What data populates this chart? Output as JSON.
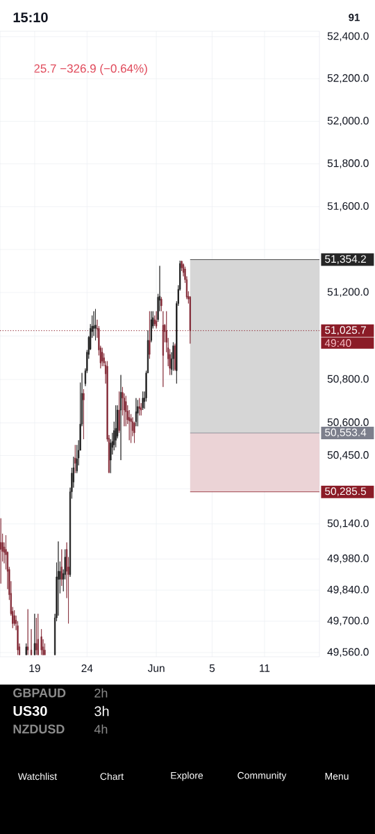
{
  "chart_data": {
    "type": "candlestick",
    "subtitle": "25.7 −326.9 (−0.64%)",
    "categories": [
      null,
      null,
      null,
      null,
      null,
      null,
      null,
      null,
      null,
      null,
      null,
      null,
      null,
      null,
      null,
      null,
      null,
      null,
      null,
      null,
      "19",
      null,
      null,
      null,
      null,
      null,
      null,
      null,
      null,
      null,
      null,
      null,
      null,
      null,
      null,
      null,
      null,
      null,
      null,
      null,
      null,
      null,
      null,
      null,
      null,
      null,
      null,
      null,
      null,
      null,
      null,
      "24",
      null,
      null,
      null,
      null,
      null,
      null,
      null,
      null,
      null,
      null,
      null,
      null,
      null,
      null,
      null,
      null,
      null,
      null,
      null,
      null,
      null,
      null,
      null,
      null,
      null,
      null,
      null,
      null,
      null,
      null,
      null,
      null,
      null,
      null,
      null,
      null,
      null,
      null,
      null,
      null,
      "Jun",
      null,
      null,
      null,
      null,
      null,
      null,
      null,
      null,
      null,
      null,
      null,
      null,
      null,
      null,
      null,
      null,
      null,
      null,
      null,
      null,
      null,
      null,
      null,
      null,
      null,
      null,
      null,
      null,
      null,
      null,
      null,
      null,
      "5",
      null,
      null,
      null,
      null,
      null,
      null,
      null,
      null,
      null,
      null,
      null,
      null,
      null,
      null,
      null,
      null,
      null,
      null,
      null,
      null,
      null,
      null,
      null,
      null,
      null,
      null,
      null,
      null,
      null,
      null,
      "11",
      null,
      null,
      null,
      null,
      null,
      null,
      null,
      null,
      null,
      null,
      null,
      null,
      null,
      null,
      null,
      null,
      null,
      null,
      null,
      null,
      null,
      null,
      null,
      null,
      null,
      null,
      null,
      null,
      null,
      null,
      null,
      null
    ],
    "ohlc": [
      [
        50055,
        50165,
        49870,
        50025
      ],
      [
        50055,
        50095,
        49970,
        50015
      ],
      [
        50035,
        50055,
        49960,
        50010
      ],
      [
        50025,
        50090,
        49935,
        50000
      ],
      [
        50010,
        50015,
        49845,
        49925
      ],
      [
        49935,
        49945,
        49795,
        49820
      ],
      [
        49825,
        49880,
        49725,
        49735
      ],
      [
        49745,
        49765,
        49670,
        49690
      ],
      [
        49725,
        49750,
        49680,
        49690
      ],
      [
        49705,
        49725,
        49660,
        49690
      ],
      [
        49680,
        49700,
        49550,
        49570
      ],
      [
        49585,
        49600,
        49550,
        49550
      ],
      null,
      null,
      null,
      [
        49550,
        49600,
        49550,
        49585
      ],
      [
        49585,
        49755,
        49550,
        49570
      ],
      null,
      [
        49570,
        49665,
        49550,
        49550
      ],
      null,
      [
        49550,
        49735,
        49550,
        49600
      ],
      [
        49600,
        49715,
        49550,
        49570
      ],
      [
        49620,
        49735,
        49550,
        49550
      ],
      null,
      [
        49630,
        49665,
        49550,
        49570
      ],
      [
        49585,
        49620,
        49550,
        49550
      ],
      [
        49570,
        49600,
        49550,
        49550
      ],
      null,
      null,
      null,
      null,
      null,
      [
        49550,
        49735,
        49550,
        49715
      ],
      [
        49715,
        49965,
        49700,
        49900
      ],
      [
        49890,
        50060,
        49725,
        49925
      ],
      [
        49890,
        49970,
        49825,
        49925
      ],
      [
        49945,
        50025,
        49860,
        49890
      ],
      [
        49890,
        49935,
        49835,
        49915
      ],
      [
        49910,
        50025,
        49890,
        49990
      ],
      [
        50025,
        50055,
        49805,
        49925
      ],
      [
        49945,
        49990,
        49690,
        49910
      ],
      [
        49910,
        50305,
        49900,
        50285
      ],
      [
        50285,
        50395,
        50255,
        50370
      ],
      [
        50330,
        50445,
        50305,
        50395
      ],
      [
        50440,
        50500,
        50370,
        50415
      ],
      [
        50380,
        50500,
        50370,
        50435
      ],
      [
        50440,
        50520,
        50405,
        50475
      ],
      [
        50475,
        50785,
        50475,
        50595
      ],
      [
        50595,
        50830,
        50585,
        50735
      ],
      [
        50735,
        50755,
        50525,
        50705
      ],
      [
        50780,
        50850,
        50770,
        50840
      ],
      [
        50840,
        50935,
        50830,
        50925
      ],
      [
        50915,
        51000,
        50895,
        50995
      ],
      [
        50940,
        51055,
        50935,
        51035
      ],
      [
        51020,
        51095,
        50990,
        51045
      ],
      [
        51035,
        51115,
        51000,
        51045
      ],
      [
        51035,
        51125,
        50980,
        51050
      ],
      [
        51035,
        51075,
        50990,
        51030
      ],
      [
        51035,
        51045,
        50910,
        50935
      ],
      [
        50945,
        50955,
        50850,
        50875
      ],
      [
        50925,
        50945,
        50860,
        50885
      ],
      [
        50900,
        50920,
        50860,
        50875
      ],
      [
        50865,
        50885,
        50780,
        50825
      ],
      [
        50860,
        50885,
        50515,
        50525
      ],
      [
        50530,
        50545,
        50370,
        50375
      ],
      [
        50430,
        50525,
        50370,
        50510
      ],
      [
        50490,
        50555,
        50455,
        50515
      ],
      [
        50500,
        50605,
        50475,
        50565
      ],
      [
        50520,
        50680,
        50490,
        50575
      ],
      [
        50540,
        50680,
        50530,
        50660
      ],
      [
        50660,
        50745,
        50555,
        50565
      ],
      [
        50660,
        50820,
        50430,
        50740
      ],
      [
        50740,
        50765,
        50635,
        50715
      ],
      [
        50715,
        50735,
        50585,
        50660
      ],
      [
        50700,
        50725,
        50585,
        50650
      ],
      [
        50655,
        50680,
        50595,
        50615
      ],
      [
        50625,
        50660,
        50520,
        50610
      ],
      [
        50620,
        50640,
        50510,
        50605
      ],
      [
        50605,
        50625,
        50540,
        50565
      ],
      [
        50600,
        50605,
        50510,
        50555
      ],
      [
        50605,
        50715,
        50585,
        50650
      ],
      [
        50645,
        50705,
        50585,
        50675
      ],
      [
        50675,
        50715,
        50635,
        50665
      ],
      [
        50670,
        50690,
        50635,
        50660
      ],
      [
        50670,
        50745,
        50660,
        50715
      ],
      [
        50700,
        50745,
        50665,
        50715
      ],
      [
        50715,
        50840,
        50700,
        50830
      ],
      [
        50830,
        51025,
        50830,
        50980
      ],
      [
        50980,
        51115,
        50895,
        50915
      ],
      [
        50980,
        51115,
        50970,
        51075
      ],
      [
        51045,
        51115,
        51035,
        51085
      ],
      [
        51075,
        51095,
        51045,
        51055
      ],
      [
        51070,
        51115,
        51035,
        51045
      ],
      [
        51075,
        51195,
        51065,
        51180
      ],
      [
        51165,
        51325,
        51115,
        51185
      ],
      [
        51170,
        51180,
        51115,
        51140
      ],
      [
        51050,
        51115,
        50765,
        50910
      ],
      [
        51050,
        51055,
        50970,
        51020
      ],
      [
        51025,
        51115,
        50925,
        50970
      ],
      [
        50945,
        50990,
        50860,
        50895
      ],
      [
        50915,
        50940,
        50820,
        50850
      ],
      [
        50845,
        50925,
        50820,
        50895
      ],
      [
        50895,
        50970,
        50840,
        50955
      ],
      [
        50955,
        50965,
        50840,
        50845
      ],
      [
        50840,
        51160,
        50780,
        51150
      ],
      [
        51150,
        51235,
        51140,
        51215
      ],
      [
        51215,
        51350,
        51210,
        51335
      ],
      [
        51345,
        51350,
        51300,
        51315
      ],
      [
        51330,
        51335,
        51275,
        51295
      ],
      [
        51310,
        51320,
        51245,
        51260
      ],
      [
        51260,
        51275,
        51170,
        51180
      ],
      [
        51185,
        51205,
        51150,
        51170
      ],
      [
        51180,
        51185,
        50965,
        51025.7
      ],
      null,
      null,
      null,
      null,
      null,
      null,
      null,
      null,
      null,
      null,
      null,
      null,
      null,
      null,
      null,
      null,
      null,
      null,
      null,
      null,
      null,
      null,
      null,
      null,
      null,
      null,
      null,
      null,
      null,
      null,
      null,
      null,
      null,
      null,
      null,
      null,
      null,
      null,
      null,
      null,
      null,
      null,
      null,
      null,
      null,
      null,
      null,
      null,
      null,
      null,
      null,
      null,
      null,
      null,
      null,
      null,
      null,
      null,
      null,
      null,
      null,
      null,
      null,
      null,
      null,
      null,
      null,
      null,
      null,
      null,
      null,
      null,
      null,
      null,
      null,
      null
    ],
    "colors": [
      "#7b1c2a",
      "#7b1c2a",
      "#7b1c2a",
      "#7b1c2a",
      "#7b1c2a",
      "#7b1c2a",
      "#7b1c2a",
      "#7b1c2a",
      "#7b1c2a",
      "#7b1c2a",
      "#7b1c2a",
      "#7b1c2a",
      null,
      null,
      null,
      "#101010",
      "#7b1c2a",
      null,
      "#7b1c2a",
      null,
      "#101010",
      "#7b1c2a",
      "#7b1c2a",
      null,
      "#7b1c2a",
      "#7b1c2a",
      "#7b1c2a",
      null,
      null,
      null,
      null,
      null,
      "#101010",
      "#101010",
      "#101010",
      "#101010",
      "#7b1c2a",
      "#101010",
      "#101010",
      "#7b1c2a",
      "#7b1c2a",
      "#101010",
      "#101010",
      "#101010",
      "#7b1c2a",
      "#101010",
      "#101010",
      "#101010",
      "#101010",
      "#7b1c2a",
      "#101010",
      "#101010",
      "#101010",
      "#101010",
      "#101010",
      "#101010",
      "#101010",
      "#7b1c2a",
      "#7b1c2a",
      "#7b1c2a",
      "#7b1c2a",
      "#7b1c2a",
      "#7b1c2a",
      "#7b1c2a",
      "#7b1c2a",
      "#101010",
      "#101010",
      "#101010",
      "#101010",
      "#101010",
      "#7b1c2a",
      "#101010",
      "#7b1c2a",
      "#7b1c2a",
      "#7b1c2a",
      "#7b1c2a",
      "#7b1c2a",
      "#7b1c2a",
      "#7b1c2a",
      "#7b1c2a",
      "#101010",
      "#101010",
      "#7b1c2a",
      "#7b1c2a",
      "#101010",
      "#101010",
      "#101010",
      "#101010",
      "#7b1c2a",
      "#101010",
      "#101010",
      "#7b1c2a",
      "#7b1c2a",
      "#101010",
      "#101010",
      "#7b1c2a",
      "#7b1c2a",
      "#7b1c2a",
      "#7b1c2a",
      "#7b1c2a",
      "#7b1c2a",
      "#101010",
      "#101010",
      "#7b1c2a",
      "#101010",
      "#101010",
      "#101010",
      "#7b1c2a",
      "#7b1c2a",
      "#7b1c2a",
      "#7b1c2a",
      "#7b1c2a",
      "#7b1c2a",
      null,
      null,
      null,
      null,
      null,
      null,
      null,
      null,
      null,
      null,
      null,
      null,
      null,
      null,
      null,
      null,
      null,
      null,
      null,
      null,
      null,
      null,
      null,
      null,
      null,
      null,
      null,
      null,
      null,
      null,
      null,
      null,
      null,
      null,
      null,
      null,
      null,
      null,
      null,
      null,
      null,
      null,
      null,
      null,
      null,
      null,
      null,
      null,
      null,
      null,
      null,
      null,
      null,
      null,
      null,
      null,
      null,
      null,
      null,
      null,
      null,
      null,
      null,
      null,
      null,
      null,
      null,
      null,
      null,
      null,
      null,
      null,
      null,
      null,
      null,
      null
    ],
    "ylim": [
      49540,
      52425
    ],
    "log": true,
    "yticks": [
      {
        "value": 52400,
        "label": "52,400.0"
      },
      {
        "value": 52200,
        "label": "52,200.0"
      },
      {
        "value": 52000,
        "label": "52,000.0"
      },
      {
        "value": 51800,
        "label": "51,800.0"
      },
      {
        "value": 51600,
        "label": "51,600.0"
      },
      {
        "value": 51400,
        "label": null
      },
      {
        "value": 51200,
        "label": "51,200.0"
      },
      {
        "value": 51000,
        "label": null
      },
      {
        "value": 50800,
        "label": "50,800.0"
      },
      {
        "value": 50600,
        "label": "50,600.0"
      },
      {
        "value": 50450,
        "label": "50,450.0"
      },
      {
        "value": 50300,
        "label": null
      },
      {
        "value": 50140,
        "label": "50,140.0"
      },
      {
        "value": 49980,
        "label": "49,980.0"
      },
      {
        "value": 49840,
        "label": "49,840.0"
      },
      {
        "value": 49700,
        "label": "49,700.0"
      },
      {
        "value": 49560,
        "label": "49,560.0"
      }
    ],
    "grid": true,
    "bands": [
      {
        "axis": "y",
        "from": 50553.4,
        "to": 51354.2,
        "color": "#d6d6d6"
      },
      {
        "axis": "y",
        "from": 50285.5,
        "to": 50553.4,
        "color": "#ebd3d6"
      }
    ],
    "ref_lines": [
      {
        "axis": "y",
        "value": 51354.2,
        "label": "51,354.2",
        "color": "#262626"
      },
      {
        "axis": "y",
        "value": 51025.7,
        "label": "51,025.7",
        "color": "#8b1c27",
        "line_style": "dotted"
      },
      {
        "axis": "y",
        "value": 50553.4,
        "label": "50,553.4",
        "color": "#7c7f8c"
      },
      {
        "axis": "y",
        "value": 50285.5,
        "label": "50,285.5",
        "color": "#8b1c27"
      }
    ],
    "annotations": [
      "15:10",
      "91",
      "GBPAUD",
      "2h",
      "US30",
      "3h",
      "NZDUSD",
      "4h",
      "Watchlist",
      "Chart",
      "Explore",
      "Community",
      "Menu",
      "49:40"
    ]
  }
}
